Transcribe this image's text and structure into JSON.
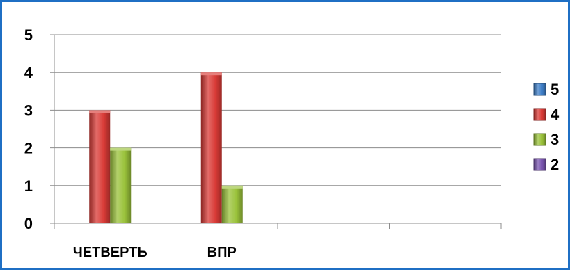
{
  "chart_data": {
    "type": "bar",
    "categories": [
      "ЧЕТВЕРТЬ",
      "ВПР",
      "",
      ""
    ],
    "series": [
      {
        "name": "5",
        "color": "#3f7fc8",
        "values": [
          0,
          0,
          0,
          0
        ]
      },
      {
        "name": "4",
        "color": "#d93a36",
        "values": [
          3,
          4,
          0,
          0
        ]
      },
      {
        "name": "3",
        "color": "#9ac23a",
        "values": [
          2,
          1,
          0,
          0
        ]
      },
      {
        "name": "2",
        "color": "#7a55b0",
        "values": [
          0,
          0,
          0,
          0
        ]
      }
    ],
    "yticks": [
      "0",
      "1",
      "2",
      "3",
      "4",
      "5"
    ],
    "ylim": [
      0,
      5
    ],
    "grid": true,
    "legend_position": "right"
  }
}
